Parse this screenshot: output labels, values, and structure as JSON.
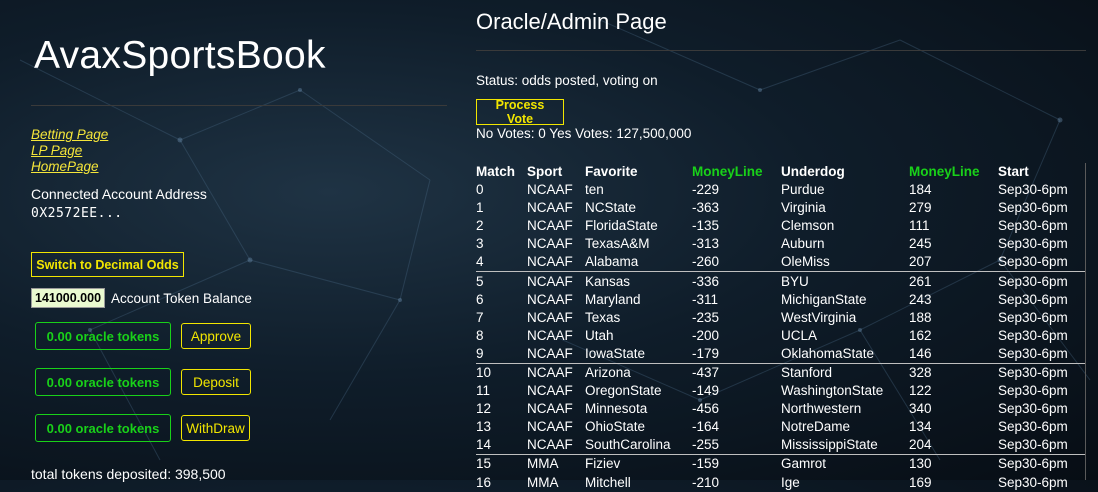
{
  "sidebar": {
    "brand": "AvaxSportsBook",
    "links": [
      {
        "label": "Betting Page"
      },
      {
        "label": "LP Page"
      },
      {
        "label": "HomePage"
      }
    ],
    "account_label": "Connected Account Address",
    "account_value": "0X2572EE...",
    "switch_odds_label": "Switch to Decimal Odds",
    "token_balance_value": "141000.000",
    "token_balance_label": "Account Token Balance",
    "oracle_rows": [
      {
        "tokens_label": "0.00 oracle tokens",
        "action_label": "Approve"
      },
      {
        "tokens_label": "0.00 oracle tokens",
        "action_label": "Deposit"
      },
      {
        "tokens_label": "0.00 oracle tokens",
        "action_label": "WithDraw"
      }
    ],
    "total_deposited": "total tokens deposited: 398,500"
  },
  "main": {
    "title": "Oracle/Admin Page",
    "status": "Status: odds posted, voting on",
    "process_vote_label": "Process Vote",
    "votes": "No Votes: 0 Yes Votes: 127,500,000",
    "table": {
      "headers": [
        "Match",
        "Sport",
        "Favorite",
        "MoneyLine",
        "Underdog",
        "MoneyLine",
        "Start"
      ],
      "rows": [
        [
          "0",
          "NCAAF",
          "ten",
          "-229",
          "Purdue",
          "184",
          "Sep30-6pm"
        ],
        [
          "1",
          "NCAAF",
          "NCState",
          "-363",
          "Virginia",
          "279",
          "Sep30-6pm"
        ],
        [
          "2",
          "NCAAF",
          "FloridaState",
          "-135",
          "Clemson",
          "111",
          "Sep30-6pm"
        ],
        [
          "3",
          "NCAAF",
          "TexasA&M",
          "-313",
          "Auburn",
          "245",
          "Sep30-6pm"
        ],
        [
          "4",
          "NCAAF",
          "Alabama",
          "-260",
          "OleMiss",
          "207",
          "Sep30-6pm"
        ],
        [
          "5",
          "NCAAF",
          "Kansas",
          "-336",
          "BYU",
          "261",
          "Sep30-6pm"
        ],
        [
          "6",
          "NCAAF",
          "Maryland",
          "-311",
          "MichiganState",
          "243",
          "Sep30-6pm"
        ],
        [
          "7",
          "NCAAF",
          "Texas",
          "-235",
          "WestVirginia",
          "188",
          "Sep30-6pm"
        ],
        [
          "8",
          "NCAAF",
          "Utah",
          "-200",
          "UCLA",
          "162",
          "Sep30-6pm"
        ],
        [
          "9",
          "NCAAF",
          "IowaState",
          "-179",
          "OklahomaState",
          "146",
          "Sep30-6pm"
        ],
        [
          "10",
          "NCAAF",
          "Arizona",
          "-437",
          "Stanford",
          "328",
          "Sep30-6pm"
        ],
        [
          "11",
          "NCAAF",
          "OregonState",
          "-149",
          "WashingtonState",
          "122",
          "Sep30-6pm"
        ],
        [
          "12",
          "NCAAF",
          "Minnesota",
          "-456",
          "Northwestern",
          "340",
          "Sep30-6pm"
        ],
        [
          "13",
          "NCAAF",
          "OhioState",
          "-164",
          "NotreDame",
          "134",
          "Sep30-6pm"
        ],
        [
          "14",
          "NCAAF",
          "SouthCarolina",
          "-255",
          "MississippiState",
          "204",
          "Sep30-6pm"
        ],
        [
          "15",
          "MMA",
          "Fiziev",
          "-159",
          "Gamrot",
          "130",
          "Sep30-6pm"
        ],
        [
          "16",
          "MMA",
          "Mitchell",
          "-210",
          "Ige",
          "169",
          "Sep30-6pm"
        ]
      ]
    }
  },
  "colors": {
    "accent_yellow": "#f2e600",
    "accent_green": "#19d119",
    "link_yellow": "#f5e63a"
  }
}
